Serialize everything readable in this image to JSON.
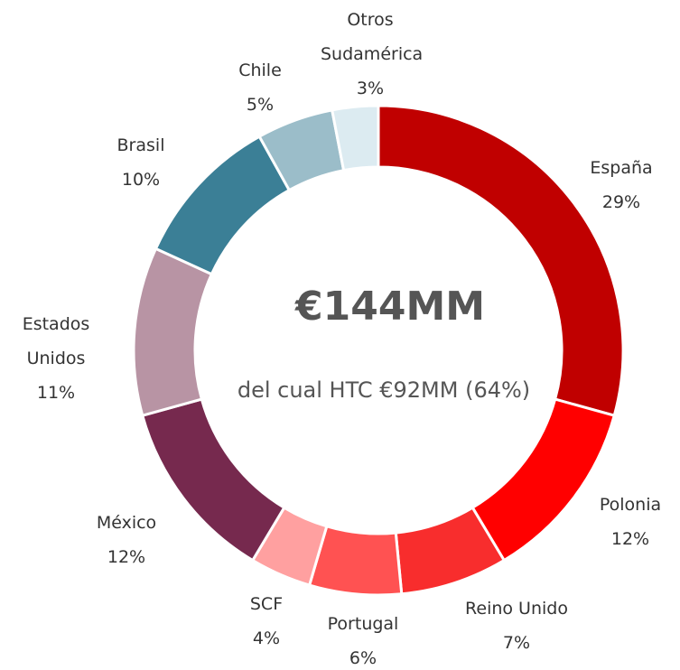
{
  "chart_data": {
    "type": "donut",
    "categories": [
      "España",
      "Polonia",
      "Reino Unido",
      "Portugal",
      "SCF",
      "México",
      "Estados Unidos",
      "Brasil",
      "Chile",
      "Otros Sudamérica"
    ],
    "values": [
      29,
      12,
      7,
      6,
      4,
      12,
      11,
      10,
      5,
      3
    ],
    "value_labels": [
      "29%",
      "12%",
      "7%",
      "6%",
      "4%",
      "12%",
      "11%",
      "10%",
      "5%",
      "3%"
    ],
    "colors": [
      "#c00000",
      "#ff0000",
      "#f82d2d",
      "#ff5252",
      "#ffa0a0",
      "#76294e",
      "#b894a4",
      "#3b7f96",
      "#9bbdc9",
      "#dcebf1"
    ],
    "center_title": "€144MM",
    "center_subtitle": "del cual HTC €92MM (64%)"
  }
}
